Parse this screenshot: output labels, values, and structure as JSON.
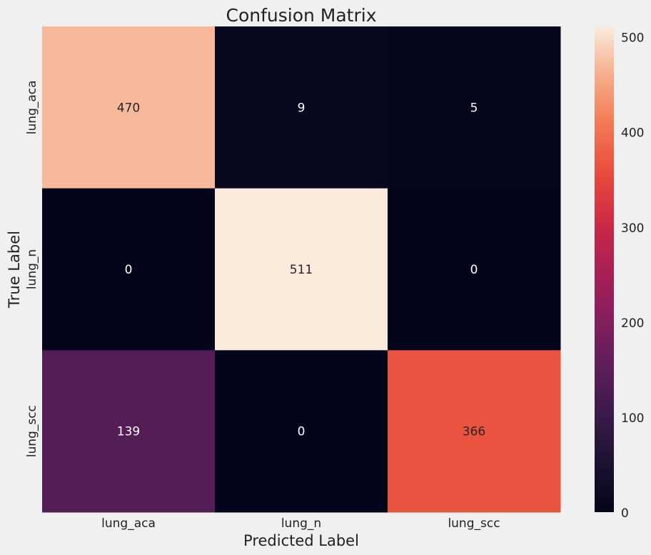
{
  "chart_data": {
    "type": "heatmap",
    "title": "Confusion Matrix",
    "xlabel": "Predicted Label",
    "ylabel": "True Label",
    "x_categories": [
      "lung_aca",
      "lung_n",
      "lung_scc"
    ],
    "y_categories": [
      "lung_aca",
      "lung_n",
      "lung_scc"
    ],
    "values": [
      [
        470,
        9,
        5
      ],
      [
        0,
        511,
        0
      ],
      [
        139,
        0,
        366
      ]
    ],
    "colorbar": {
      "min": 0,
      "max": 511,
      "ticks": [
        0,
        100,
        200,
        300,
        400,
        500
      ],
      "colormap": "rocket"
    },
    "colors": {
      "background": "#f0f0f0",
      "text": "#222222"
    }
  }
}
